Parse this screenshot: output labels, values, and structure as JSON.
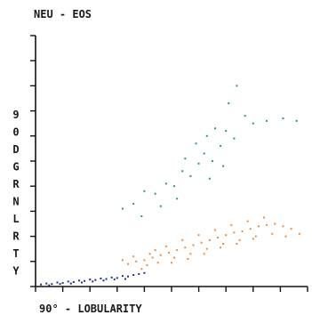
{
  "chart_data": {
    "type": "scatter",
    "title": "NEU - EOS",
    "xlabel": "90° - LOBULARITY",
    "ylabel": "90DGRNLRTY",
    "xlim": [
      0,
      10
    ],
    "ylim": [
      0,
      10
    ],
    "grid": false,
    "legend": "none",
    "series": [
      {
        "color": "#1f2f8c",
        "points": [
          [
            0.2,
            0.08
          ],
          [
            0.4,
            0.12
          ],
          [
            0.6,
            0.1
          ],
          [
            0.8,
            0.16
          ],
          [
            1.0,
            0.14
          ],
          [
            1.2,
            0.2
          ],
          [
            1.4,
            0.18
          ],
          [
            1.6,
            0.24
          ],
          [
            1.8,
            0.22
          ],
          [
            2.0,
            0.28
          ],
          [
            2.2,
            0.26
          ],
          [
            2.4,
            0.32
          ],
          [
            2.6,
            0.3
          ],
          [
            2.8,
            0.36
          ],
          [
            3.0,
            0.34
          ],
          [
            3.2,
            0.42
          ],
          [
            3.4,
            0.4
          ],
          [
            3.6,
            0.46
          ],
          [
            0.5,
            0.05
          ],
          [
            0.9,
            0.1
          ],
          [
            1.3,
            0.12
          ],
          [
            1.7,
            0.16
          ],
          [
            2.1,
            0.2
          ],
          [
            2.5,
            0.24
          ],
          [
            2.9,
            0.28
          ],
          [
            3.3,
            0.3
          ],
          [
            3.8,
            0.5
          ],
          [
            4.0,
            0.54
          ]
        ]
      },
      {
        "color": "#f08a3c",
        "points": [
          [
            3.4,
            0.9
          ],
          [
            3.7,
            1.0
          ],
          [
            4.0,
            1.05
          ],
          [
            4.3,
            1.15
          ],
          [
            4.6,
            1.25
          ],
          [
            4.9,
            1.35
          ],
          [
            5.2,
            1.45
          ],
          [
            5.5,
            1.55
          ],
          [
            5.8,
            1.65
          ],
          [
            6.1,
            1.75
          ],
          [
            6.4,
            1.85
          ],
          [
            6.7,
            1.95
          ],
          [
            7.0,
            2.05
          ],
          [
            7.3,
            2.15
          ],
          [
            7.6,
            2.2
          ],
          [
            7.9,
            2.3
          ],
          [
            8.2,
            2.4
          ],
          [
            8.5,
            2.45
          ],
          [
            8.8,
            2.5
          ],
          [
            9.1,
            2.4
          ],
          [
            9.4,
            2.3
          ],
          [
            9.7,
            2.1
          ],
          [
            4.2,
            1.3
          ],
          [
            4.8,
            1.6
          ],
          [
            5.4,
            1.85
          ],
          [
            6.0,
            2.05
          ],
          [
            6.6,
            2.25
          ],
          [
            7.2,
            2.45
          ],
          [
            7.8,
            2.6
          ],
          [
            8.4,
            2.75
          ],
          [
            3.9,
            0.7
          ],
          [
            4.5,
            0.95
          ],
          [
            5.1,
            1.15
          ],
          [
            5.7,
            1.3
          ],
          [
            6.3,
            1.5
          ],
          [
            6.9,
            1.7
          ],
          [
            7.5,
            1.85
          ],
          [
            8.1,
            2.0
          ],
          [
            8.7,
            2.1
          ],
          [
            9.2,
            2.0
          ],
          [
            3.2,
            1.05
          ],
          [
            3.6,
            1.2
          ],
          [
            4.1,
            0.85
          ],
          [
            4.4,
            1.45
          ],
          [
            5.0,
            0.95
          ],
          [
            5.6,
            1.1
          ],
          [
            6.2,
            1.3
          ],
          [
            6.8,
            1.55
          ],
          [
            7.4,
            1.7
          ],
          [
            8.0,
            1.9
          ]
        ]
      },
      {
        "color": "#2e9a56",
        "points": [
          [
            3.2,
            3.1
          ],
          [
            3.6,
            3.3
          ],
          [
            4.0,
            3.8
          ],
          [
            4.4,
            3.7
          ],
          [
            4.8,
            4.1
          ],
          [
            5.1,
            4.0
          ],
          [
            5.4,
            4.6
          ],
          [
            5.7,
            4.4
          ],
          [
            6.0,
            4.9
          ],
          [
            6.2,
            5.3
          ],
          [
            6.5,
            5.0
          ],
          [
            6.8,
            5.6
          ],
          [
            7.0,
            6.2
          ],
          [
            7.3,
            5.9
          ],
          [
            7.7,
            6.8
          ],
          [
            8.0,
            6.5
          ],
          [
            8.5,
            6.6
          ],
          [
            9.1,
            6.7
          ],
          [
            9.6,
            6.6
          ],
          [
            7.4,
            8.0
          ],
          [
            5.9,
            5.7
          ],
          [
            6.6,
            6.3
          ],
          [
            4.6,
            3.2
          ],
          [
            5.2,
            3.5
          ],
          [
            6.4,
            4.3
          ],
          [
            3.9,
            2.8
          ],
          [
            6.9,
            4.8
          ],
          [
            7.1,
            7.3
          ],
          [
            6.3,
            6.0
          ],
          [
            5.5,
            5.1
          ]
        ]
      }
    ]
  }
}
